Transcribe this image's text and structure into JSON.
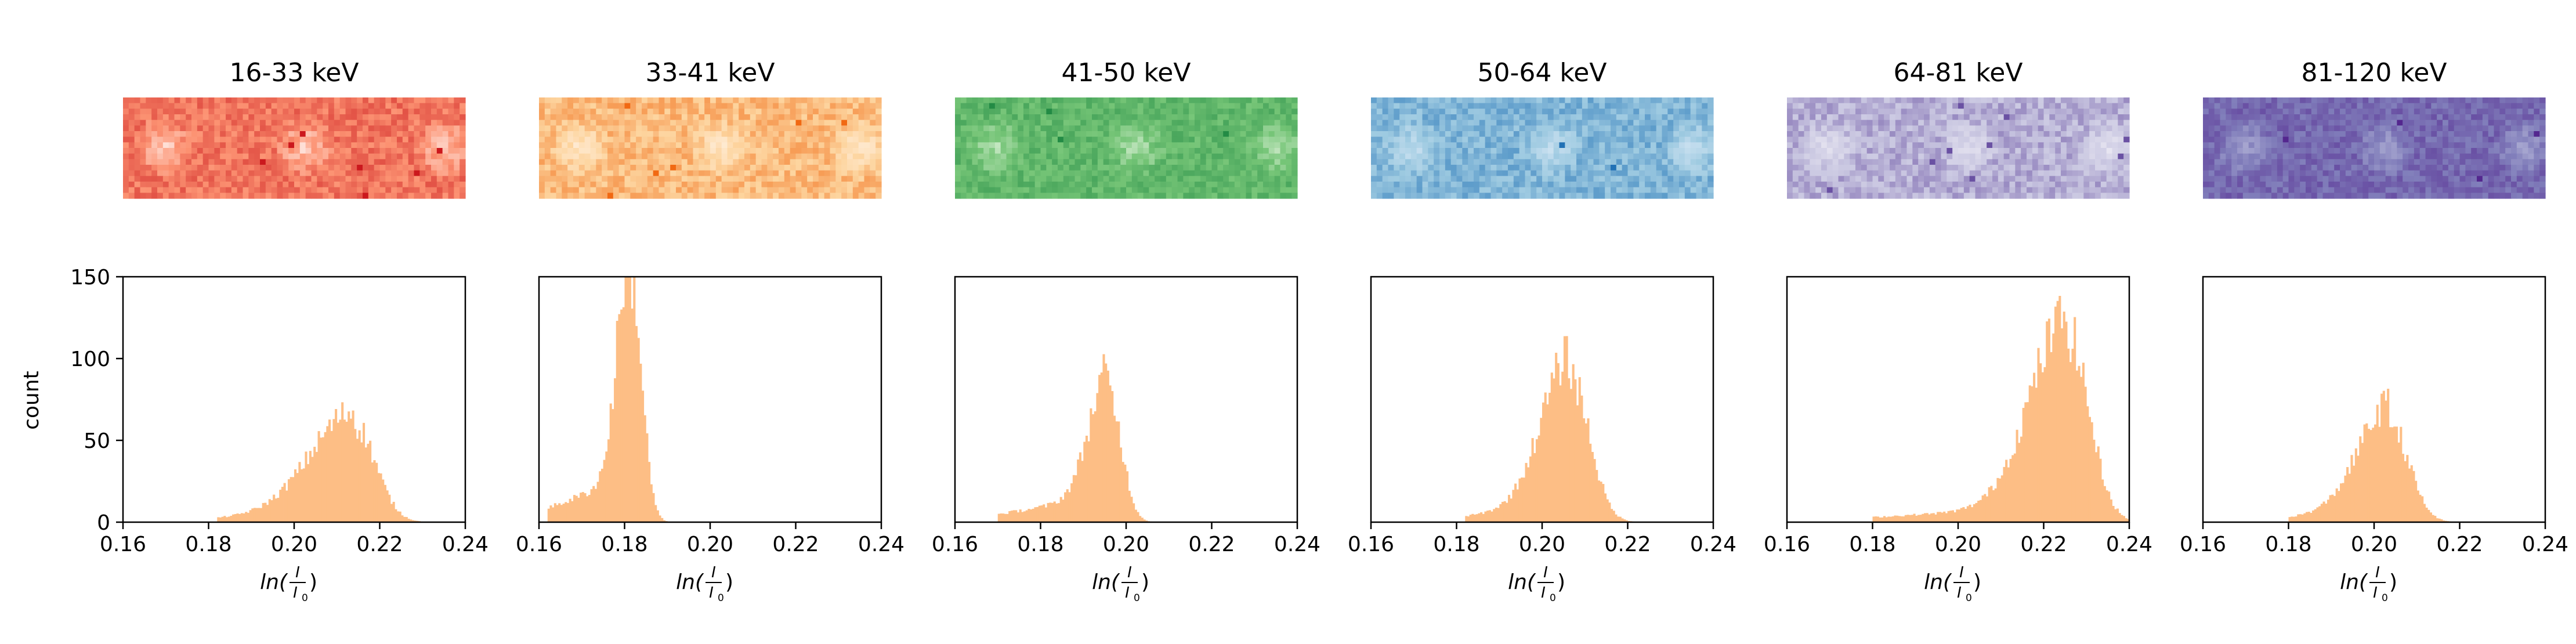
{
  "figure": {
    "ylabel": "count",
    "xlabel": "ln(I/I0)"
  },
  "panels": [
    {
      "title": "16-33 keV",
      "colormap": {
        "low": "#ffffff",
        "mid": "#fc9272",
        "high": "#cb181d"
      },
      "chart_data": {
        "type": "histogram",
        "xlim": [
          0.16,
          0.24
        ],
        "ylim": [
          0,
          150
        ],
        "xticks": [
          "0.16",
          "0.18",
          "0.20",
          "0.22",
          "0.24"
        ],
        "yticks": [
          "0",
          "50",
          "100",
          "150"
        ],
        "bar_color": "#fdbe85",
        "peak_x": 0.214,
        "peak_count": 60,
        "left_spread": 0.01,
        "right_spread": 0.005,
        "tail_from": 0.182,
        "tail_level": 4,
        "range": [
          0.175,
          0.235
        ]
      }
    },
    {
      "title": "33-41 keV",
      "colormap": {
        "low": "#fff5eb",
        "mid": "#fdd49e",
        "high": "#f16913"
      },
      "chart_data": {
        "type": "histogram",
        "xlim": [
          0.16,
          0.24
        ],
        "ylim": [
          0,
          150
        ],
        "xticks": [
          "0.16",
          "0.18",
          "0.20",
          "0.22",
          "0.24"
        ],
        "yticks": [],
        "bar_color": "#fdbe85",
        "peak_x": 0.1815,
        "peak_count": 150,
        "left_spread": 0.003,
        "right_spread": 0.0025,
        "tail_from": 0.162,
        "tail_level": 14,
        "range": [
          0.16,
          0.2
        ]
      }
    },
    {
      "title": "41-50 keV",
      "colormap": {
        "low": "#e5f5e0",
        "mid": "#74c476",
        "high": "#238b45"
      },
      "chart_data": {
        "type": "histogram",
        "xlim": [
          0.16,
          0.24
        ],
        "ylim": [
          0,
          150
        ],
        "xticks": [
          "0.16",
          "0.18",
          "0.20",
          "0.22",
          "0.24"
        ],
        "yticks": [],
        "bar_color": "#fdbe85",
        "peak_x": 0.196,
        "peak_count": 77,
        "left_spread": 0.0045,
        "right_spread": 0.003,
        "tail_from": 0.17,
        "tail_level": 8,
        "range": [
          0.165,
          0.21
        ]
      }
    },
    {
      "title": "50-64 keV",
      "colormap": {
        "low": "#deebf7",
        "mid": "#9ecae1",
        "high": "#2171b5"
      },
      "chart_data": {
        "type": "histogram",
        "xlim": [
          0.16,
          0.24
        ],
        "ylim": [
          0,
          150
        ],
        "xticks": [
          "0.16",
          "0.18",
          "0.20",
          "0.22",
          "0.24"
        ],
        "yticks": [],
        "bar_color": "#fdbe85",
        "peak_x": 0.2065,
        "peak_count": 90,
        "left_spread": 0.0065,
        "right_spread": 0.0045,
        "tail_from": 0.182,
        "tail_level": 6,
        "range": [
          0.178,
          0.23
        ]
      }
    },
    {
      "title": "64-81 keV",
      "colormap": {
        "low": "#f2f0f7",
        "mid": "#cbc9e2",
        "high": "#6a51a3"
      },
      "chart_data": {
        "type": "histogram",
        "xlim": [
          0.16,
          0.24
        ],
        "ylim": [
          0,
          150
        ],
        "xticks": [
          "0.16",
          "0.18",
          "0.20",
          "0.22",
          "0.24"
        ],
        "yticks": [],
        "bar_color": "#fdbe85",
        "peak_x": 0.2255,
        "peak_count": 116,
        "left_spread": 0.0085,
        "right_spread": 0.005,
        "tail_from": 0.18,
        "tail_level": 5,
        "range": [
          0.17,
          0.24
        ]
      }
    },
    {
      "title": "81-120 keV",
      "colormap": {
        "low": "#bcbddc",
        "mid": "#807dba",
        "high": "#54278f"
      },
      "chart_data": {
        "type": "histogram",
        "xlim": [
          0.16,
          0.24
        ],
        "ylim": [
          0,
          150
        ],
        "xticks": [
          "0.16",
          "0.18",
          "0.20",
          "0.22",
          "0.24"
        ],
        "yticks": [],
        "bar_color": "#fdbe85",
        "peak_x": 0.2035,
        "peak_count": 62,
        "left_spread": 0.007,
        "right_spread": 0.0045,
        "tail_from": 0.18,
        "tail_level": 5,
        "range": [
          0.175,
          0.232
        ]
      }
    }
  ]
}
